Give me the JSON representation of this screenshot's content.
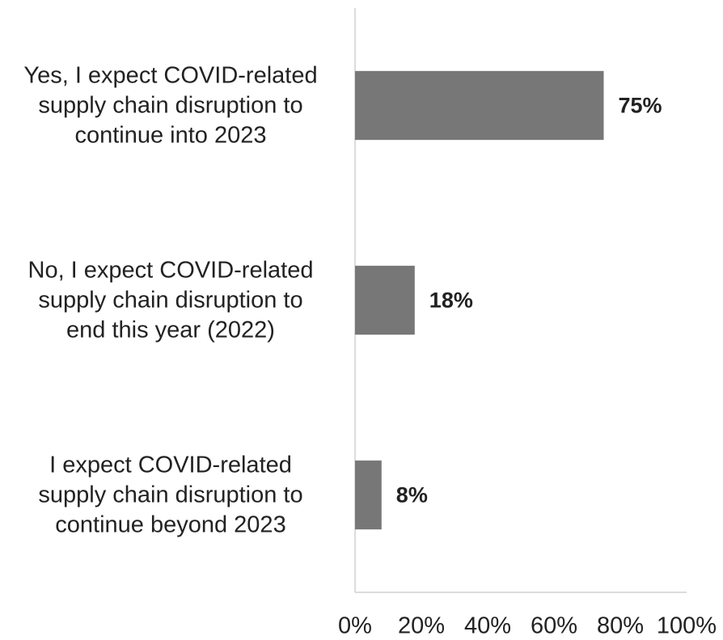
{
  "chart_data": {
    "type": "bar",
    "orientation": "horizontal",
    "categories": [
      "Yes, I expect COVID-related\nsupply chain disruption to\ncontinue into 2023",
      "No, I expect COVID-related\nsupply chain disruption to\nend this year (2022)",
      "I expect COVID-related\nsupply chain disruption to\ncontinue beyond 2023"
    ],
    "values": [
      75,
      18,
      8
    ],
    "value_labels": [
      "75%",
      "18%",
      "8%"
    ],
    "color": "#777777",
    "xlim": [
      0,
      100
    ],
    "xticks": [
      {
        "value": 0,
        "label": "0%"
      },
      {
        "value": 20,
        "label": "20%"
      },
      {
        "value": 40,
        "label": "40%"
      },
      {
        "value": 60,
        "label": "60%"
      },
      {
        "value": 80,
        "label": "80%"
      },
      {
        "value": 100,
        "label": "100%"
      }
    ],
    "grid": false
  }
}
